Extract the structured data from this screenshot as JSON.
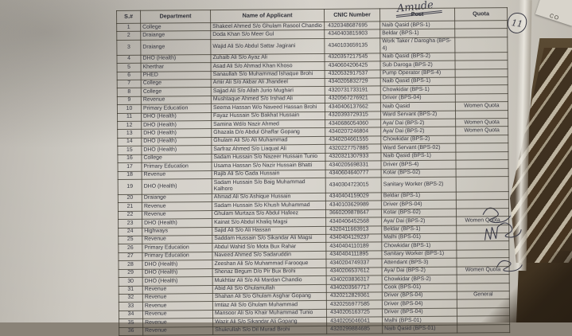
{
  "annotations": {
    "handwritten_note": "Amude",
    "circled_number": "11",
    "corner_paper_text": "CO"
  },
  "table": {
    "headers": [
      "S.#",
      "Department",
      "Name of Applicant",
      "CNIC Number",
      "Post",
      "Quota"
    ],
    "rows": [
      [
        "1",
        "College",
        "Shakeel Ahmed S/o Ghulam Rasool Chandio",
        "4320348687695",
        "Naib Qasid (BPS-1)",
        ""
      ],
      [
        "2",
        "Draiange",
        "Doda Khan S/o Meer Gul",
        "4340403815903",
        "Beldar (BPS-1)",
        ""
      ],
      [
        "3",
        "Draiange",
        "Wajid Ali S/o Abdul Sattar Jagirani",
        "4340103659135",
        "Work Taker / Darogha (BPS-4)",
        ""
      ],
      [
        "4",
        "DHO (Health)",
        "Zuhaib Ali S/o Ayaz Ali",
        "4320357217545",
        "Naib Qasid (BPS-2)",
        ""
      ],
      [
        "5",
        "Kherthar",
        "Asad Ali S/o Ahmad Khan Khoso",
        "4340604206425",
        "Sub Daroga (BPS-2)",
        ""
      ],
      [
        "6",
        "PHED",
        "Sanaullah S/o Muhammad Ishaque Brohi",
        "4320532917537",
        "Pump Operator (BPS-4)",
        ""
      ],
      [
        "7",
        "College",
        "Amir Ali S/o Akbar Ali Jhandeel",
        "4340205832729",
        "Naib Qasid (BPS-1)",
        ""
      ],
      [
        "8",
        "College",
        "Sajjad Ali S/o Allah Jurio Mughari",
        "4320731733191",
        "Chowkidar (BPS-1)",
        ""
      ],
      [
        "9",
        "Revenue",
        "Mushtaque Ahmed S/o Irshad Ali",
        "4320567276921",
        "Driver (BPS-04)",
        ""
      ],
      [
        "10",
        "Primary Education",
        "Seema Hassan W/o Naveed Hassan Brohi",
        "4340406137662",
        "Naib Qasid",
        "Women Quota"
      ],
      [
        "11",
        "DHO (Health)",
        "Fayaz Hussain S/o Bakhat Hussain",
        "4320393729315",
        "Ward Servant (BPS-2)",
        ""
      ],
      [
        "12",
        "DHO (Health)",
        "Samina Wd/o Nazir Ahmed",
        "4340686054060",
        "Aya/ Dai (BPS-2)",
        "Women Quota"
      ],
      [
        "13",
        "DHO (Health)",
        "Ghazala D/o Abdul Ghaffar Gopang",
        "4340207246804",
        "Aya/ Dai (BPS-2)",
        "Women Quota"
      ],
      [
        "14",
        "DHO (Health)",
        "Ghulam Ali S/o Ali Muhammad",
        "4340204661555",
        "Chowkidar (BPS-2)",
        ""
      ],
      [
        "15",
        "DHO (Health)",
        "Sarfraz Ahmed S/o Liaquat Ali",
        "4320227757885",
        "Ward Servant (BPS-02)",
        ""
      ],
      [
        "16",
        "College",
        "Sadam Hussain S/o Nazeer Hussain Tunio",
        "4320321307933",
        "Naib Qasid (BPS-1)",
        ""
      ],
      [
        "17",
        "Primary Education",
        "Usama Hassan S/o Nazir Hussain Bhatti",
        "4340205698331",
        "Driver (BPS-4)",
        ""
      ],
      [
        "18",
        "Revenue",
        "Rajib Ali S/o Gada Hussain",
        "4340604640777",
        "Kotar (BPS-02)",
        ""
      ],
      [
        "19",
        "DHO (Health)",
        "Sadam Hussain S/o Baig Muhammad Kalhoro",
        "4340304723015",
        "Sanitary Worker (BPS-2)",
        ""
      ],
      [
        "20",
        "Draiange",
        "Ahmad Ali S/o Ashique Hussain",
        "4340404159029",
        "Beldar (BPS-1)",
        ""
      ],
      [
        "21",
        "Revenue",
        "Sadam Hussain S/o Khush Muhammad",
        "4340103629989",
        "Driver (BPS-04)",
        ""
      ],
      [
        "22",
        "Revenue",
        "Ghulam Murtaza S/o Abdul Hafeez",
        "3660209878647",
        "Kotar (BPS-02)",
        ""
      ],
      [
        "23",
        "DHO (Health)",
        "Kainat S/o Abdul Khaliq Magsi",
        "4340406452568",
        "Aya/ Dai (BPS-2)",
        "Women Quota"
      ],
      [
        "24",
        "Highways",
        "Sajid Ali S/o Ali Hassan",
        "4320411663913",
        "Beldar (BPS-1)",
        ""
      ],
      [
        "25",
        "Revenue",
        "Saddam Hussain S/o Sikandar Ali Magsi",
        "4340404129237",
        "Malhi (BPS-01)",
        ""
      ],
      [
        "26",
        "Primary Education",
        "Abdul Wahid S/o Mota Bux Rahar",
        "4340404110189",
        "Chowkidar (BPS-1)",
        ""
      ],
      [
        "27",
        "Primary Education",
        "Naveed Ahmed S/o Sadaruddin",
        "4340404111895",
        "Sanitary Worker (BPS-1)",
        ""
      ],
      [
        "28",
        "DHO (Health)",
        "Zeeshan Ali S/o Muhammad Farooque",
        "4340204749337",
        "Attendant (BPS-3)",
        ""
      ],
      [
        "29",
        "DHO (Health)",
        "Shenaz Begum D/o Pir Bux Brohi",
        "4340206537612",
        "Aya/ Dai (BPS-2)",
        "Women Quota"
      ],
      [
        "30",
        "DHO (Health)",
        "Mukhtiar Ali S/o Ali Mardan Chandio",
        "4340203836317",
        "Chowkidar (BPS-2)",
        ""
      ],
      [
        "31",
        "Revenue",
        "Abid Ali S/o Ghulamullah",
        "4340203567717",
        "Cook (BPS-01)",
        ""
      ],
      [
        "32",
        "Revenue",
        "Shahan Ali S/o Ghulam Asghar Gopang",
        "4320212829361",
        "Driver (BPS-04)",
        "General"
      ],
      [
        "33",
        "Revenue",
        "Imtiaz Ali S/o Ghulam Muhammad",
        "4320255977585",
        "Driver (BPS-04)",
        ""
      ],
      [
        "34",
        "Revenue",
        "Mansoor Ali S/o Khair Muhammad Tunio",
        "4340205163725",
        "Driver (BPS-04)",
        ""
      ],
      [
        "35",
        "Revenue",
        "Wazir Ali S/o Sikandar Ali Gopang",
        "4340205046041",
        "Malhi (BPS-01)",
        ""
      ],
      [
        "36",
        "Revenue",
        "Shukrullah S/o Dil Murad Brohi",
        "4320299884685",
        "Naib Qasid (BPS-01)",
        ""
      ]
    ]
  },
  "colors": {
    "paper": "#cdc9c1",
    "backdrop": "#3c2f1e",
    "ink": "#34353e",
    "grid_line": "#3e3a30"
  }
}
